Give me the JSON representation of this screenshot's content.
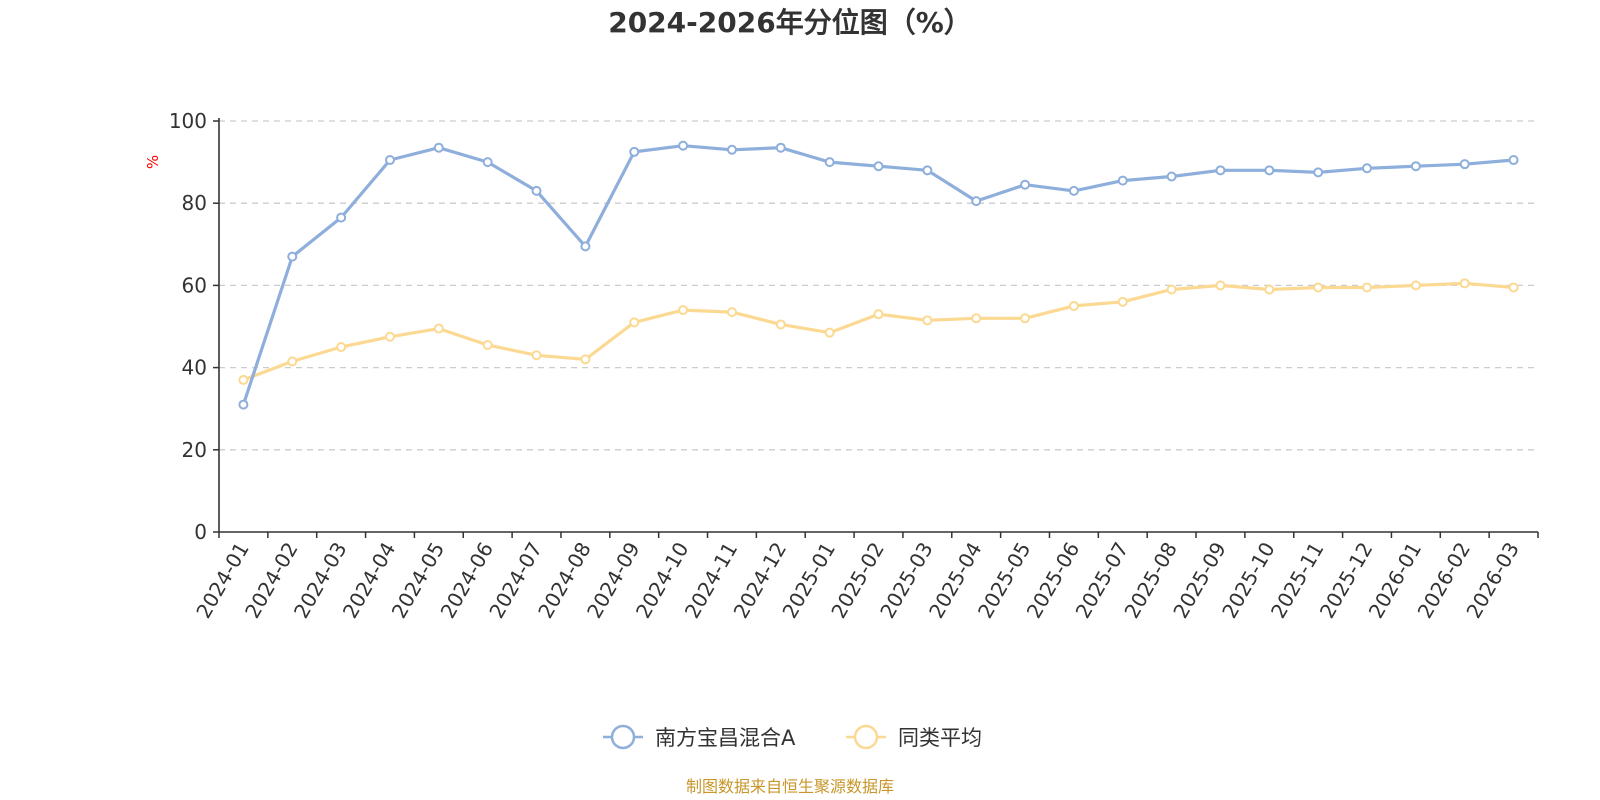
{
  "chart_data": {
    "type": "line",
    "title": "2024-2026年分位图（%）",
    "ylabel": "%",
    "ylim": [
      0,
      100
    ],
    "yticks": [
      "0",
      "20",
      "40",
      "60",
      "80",
      "100"
    ],
    "grid": true,
    "legend_position": "bottom-center",
    "categories": [
      "2024-01",
      "2024-02",
      "2024-03",
      "2024-04",
      "2024-05",
      "2024-06",
      "2024-07",
      "2024-08",
      "2024-09",
      "2024-10",
      "2024-11",
      "2024-12",
      "2025-01",
      "2025-02",
      "2025-03",
      "2025-04",
      "2025-05",
      "2025-06",
      "2025-07",
      "2025-08",
      "2025-09",
      "2025-10",
      "2025-11",
      "2025-12",
      "2026-01",
      "2026-02",
      "2026-03"
    ],
    "series": [
      {
        "name": "南方宝昌混合A",
        "color": "#8eaedb",
        "values": [
          31,
          67,
          76.5,
          90.5,
          93.5,
          90,
          83,
          69.5,
          92.5,
          94,
          93,
          93.5,
          90,
          89,
          88,
          80.5,
          84.5,
          83,
          85.5,
          86.5,
          88,
          88,
          87.5,
          88.5,
          89,
          89.5,
          90.5
        ]
      },
      {
        "name": "同类平均",
        "color": "#fcd993",
        "values": [
          37,
          41.5,
          45,
          47.5,
          49.5,
          45.5,
          43,
          42,
          51,
          54,
          53.5,
          50.5,
          48.5,
          53,
          51.5,
          52,
          52,
          55,
          56,
          59,
          60,
          59,
          59.5,
          59.5,
          60,
          60.5,
          59.5
        ]
      }
    ]
  },
  "source_text": "制图数据来自恒生聚源数据库",
  "colors": {
    "axis": "#333333",
    "grid": "#cccccc",
    "title": "#333333",
    "unit": "#ff0000",
    "source": "#c8962a"
  }
}
